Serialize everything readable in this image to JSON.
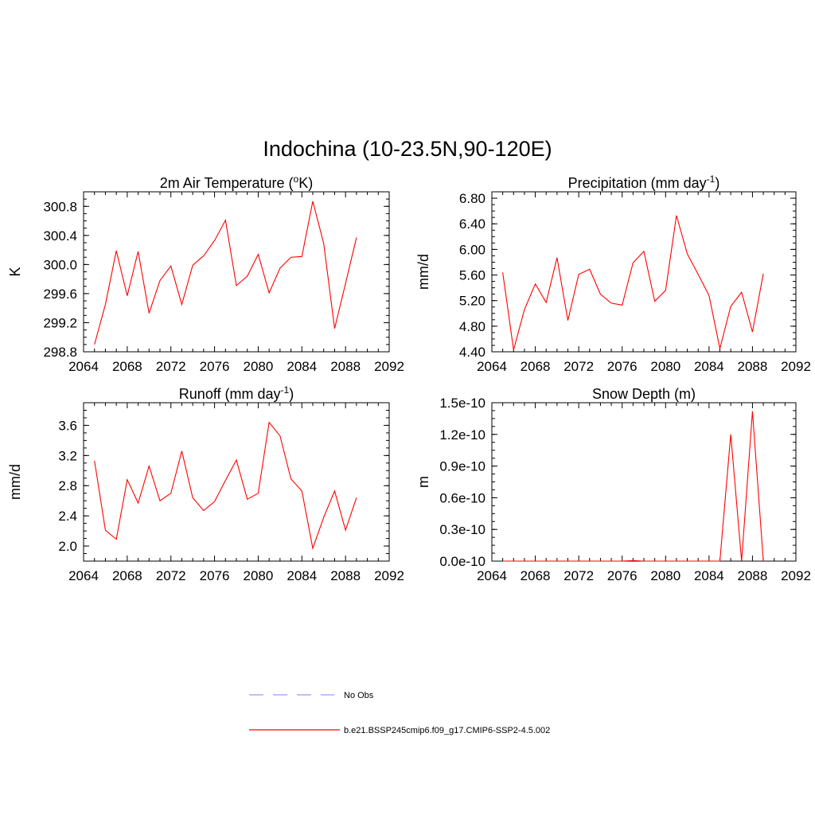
{
  "page_title": "Indochina (10-23.5N,90-120E)",
  "legend": [
    {
      "label": "No Obs",
      "color": "#9999ff",
      "style": "dashed"
    },
    {
      "label": "b.e21.BSSP245cmip6.f09_g17.CMIP6-SSP2-4.5.002",
      "color": "#ff0000",
      "style": "solid"
    }
  ],
  "chart_data": [
    {
      "type": "line",
      "title_main": "2m Air Temperature (",
      "title_sup": "o",
      "title_tail": "K)",
      "ylabel": "K",
      "xlim": [
        2064,
        2092
      ],
      "ylim": [
        298.8,
        301.0
      ],
      "xticks": [
        2064,
        2068,
        2072,
        2076,
        2080,
        2084,
        2088,
        2092
      ],
      "yticks": [
        298.8,
        299.2,
        299.6,
        300.0,
        300.4,
        300.8
      ],
      "ytick_labels": [
        "298.8",
        "299.2",
        "299.6",
        "300.0",
        "300.4",
        "300.8"
      ],
      "series": [
        {
          "color": "#ff0000",
          "x": [
            2065,
            2066,
            2067,
            2068,
            2069,
            2070,
            2071,
            2072,
            2073,
            2074,
            2075,
            2076,
            2077,
            2078,
            2079,
            2080,
            2081,
            2082,
            2083,
            2084,
            2085,
            2086,
            2087,
            2088,
            2089
          ],
          "y": [
            298.9,
            299.45,
            300.19,
            299.57,
            300.18,
            299.33,
            299.78,
            299.98,
            299.45,
            299.99,
            300.12,
            300.33,
            300.61,
            299.71,
            299.84,
            300.14,
            299.61,
            299.95,
            300.1,
            300.11,
            300.87,
            300.29,
            299.12,
            299.74,
            300.37
          ]
        }
      ]
    },
    {
      "type": "line",
      "title_main": "Precipitation (mm day",
      "title_sup": "-1",
      "title_tail": ")",
      "ylabel": "mm/d",
      "xlim": [
        2064,
        2092
      ],
      "ylim": [
        4.4,
        6.9
      ],
      "xticks": [
        2064,
        2068,
        2072,
        2076,
        2080,
        2084,
        2088,
        2092
      ],
      "yticks": [
        4.4,
        4.8,
        5.2,
        5.6,
        6.0,
        6.4,
        6.8
      ],
      "ytick_labels": [
        "4.40",
        "4.80",
        "5.20",
        "5.60",
        "6.00",
        "6.40",
        "6.80"
      ],
      "series": [
        {
          "color": "#ff0000",
          "x": [
            2065,
            2066,
            2067,
            2068,
            2069,
            2070,
            2071,
            2072,
            2073,
            2074,
            2075,
            2076,
            2077,
            2078,
            2079,
            2080,
            2081,
            2082,
            2083,
            2084,
            2085,
            2086,
            2087,
            2088,
            2089
          ],
          "y": [
            5.64,
            4.43,
            5.06,
            5.46,
            5.17,
            5.87,
            4.89,
            5.61,
            5.69,
            5.3,
            5.16,
            5.13,
            5.79,
            5.97,
            5.19,
            5.36,
            6.53,
            5.93,
            5.61,
            5.28,
            4.45,
            5.11,
            5.33,
            4.71,
            5.62
          ]
        }
      ]
    },
    {
      "type": "line",
      "title_main": "Runoff (mm day",
      "title_sup": "-1",
      "title_tail": ")",
      "ylabel": "mm/d",
      "xlim": [
        2064,
        2092
      ],
      "ylim": [
        1.8,
        3.9
      ],
      "xticks": [
        2064,
        2068,
        2072,
        2076,
        2080,
        2084,
        2088,
        2092
      ],
      "yticks": [
        2.0,
        2.4,
        2.8,
        3.2,
        3.6
      ],
      "ytick_labels": [
        "2.0",
        "2.4",
        "2.8",
        "3.2",
        "3.6"
      ],
      "series": [
        {
          "color": "#ff0000",
          "x": [
            2065,
            2066,
            2067,
            2068,
            2069,
            2070,
            2071,
            2072,
            2073,
            2074,
            2075,
            2076,
            2077,
            2078,
            2079,
            2080,
            2081,
            2082,
            2083,
            2084,
            2085,
            2086,
            2087,
            2088,
            2089
          ],
          "y": [
            3.13,
            2.21,
            2.09,
            2.88,
            2.57,
            3.06,
            2.6,
            2.7,
            3.26,
            2.64,
            2.47,
            2.59,
            2.87,
            3.14,
            2.62,
            2.7,
            3.64,
            3.46,
            2.89,
            2.73,
            1.97,
            2.38,
            2.73,
            2.21,
            2.64
          ]
        }
      ]
    },
    {
      "type": "line",
      "title_main": "Snow Depth (m)",
      "title_sup": "",
      "title_tail": "",
      "ylabel": "m",
      "xlim": [
        2064,
        2092
      ],
      "ylim": [
        0,
        1.5e-10
      ],
      "xticks": [
        2064,
        2068,
        2072,
        2076,
        2080,
        2084,
        2088,
        2092
      ],
      "yticks": [
        0,
        3e-11,
        6e-11,
        9e-11,
        1.2e-10,
        1.5e-10
      ],
      "ytick_labels": [
        "0.0e-10",
        "0.3e-10",
        "0.6e-10",
        "0.9e-10",
        "1.2e-10",
        "1.5e-10"
      ],
      "series": [
        {
          "color": "#ff0000",
          "x": [
            2065,
            2066,
            2067,
            2068,
            2069,
            2070,
            2071,
            2072,
            2073,
            2074,
            2075,
            2076,
            2077,
            2078,
            2079,
            2080,
            2081,
            2082,
            2083,
            2084,
            2085,
            2086,
            2087,
            2088,
            2089
          ],
          "y": [
            0,
            0,
            0,
            0,
            0,
            0,
            0,
            0,
            0,
            0,
            0,
            0,
            5e-13,
            0,
            0,
            0,
            0,
            0,
            0,
            0,
            0,
            1.2e-10,
            0,
            1.42e-10,
            0
          ]
        }
      ]
    }
  ]
}
